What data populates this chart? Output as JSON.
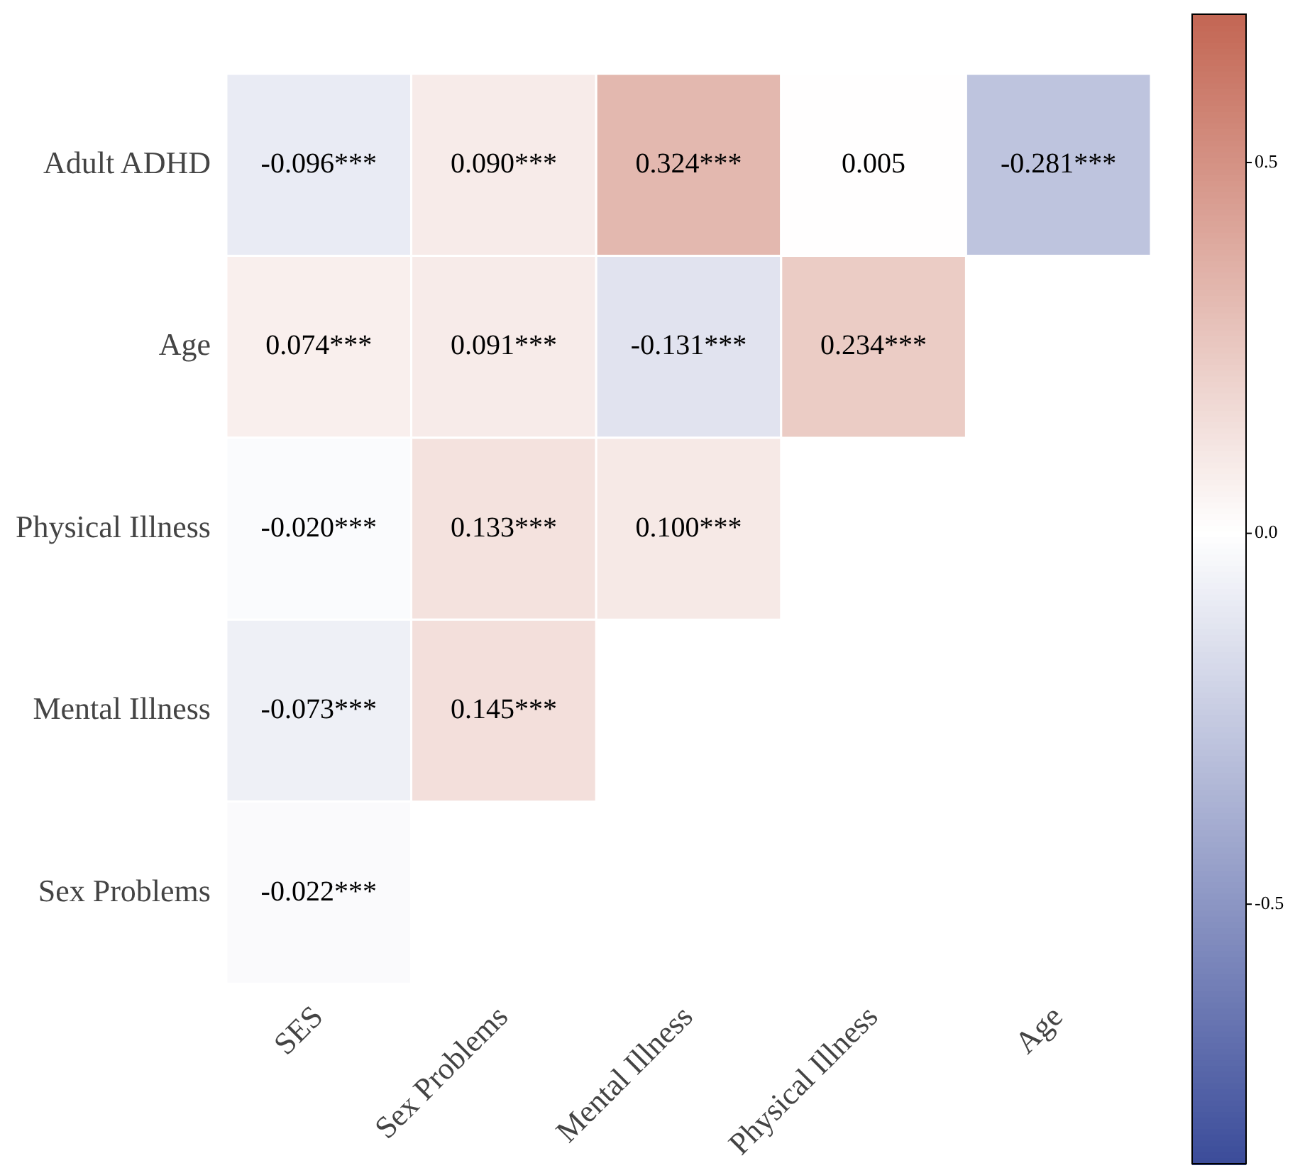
{
  "chart_data": {
    "type": "heatmap",
    "categories": [
      "SES",
      "Sex Problems",
      "Mental Illness",
      "Physical Illness",
      "Age"
    ],
    "y_categories": [
      "Adult ADHD",
      "Age",
      "Physical Illness",
      "Mental Illness",
      "Sex Problems"
    ],
    "cells": [
      [
        -0.096,
        0.09,
        0.324,
        0.005,
        -0.281
      ],
      [
        0.074,
        0.091,
        -0.131,
        0.234,
        null
      ],
      [
        -0.02,
        0.133,
        0.1,
        null,
        null
      ],
      [
        -0.073,
        0.145,
        null,
        null,
        null
      ],
      [
        -0.022,
        null,
        null,
        null,
        null
      ]
    ],
    "cell_labels": [
      [
        "-0.096***",
        "0.090***",
        "0.324***",
        "0.005",
        "-0.281***"
      ],
      [
        "0.074***",
        "0.091***",
        "-0.131***",
        "0.234***",
        null
      ],
      [
        "-0.020***",
        "0.133***",
        "0.100***",
        null,
        null
      ],
      [
        "-0.073***",
        "0.145***",
        null,
        null,
        null
      ],
      [
        "-0.022***",
        null,
        null,
        null,
        null
      ]
    ],
    "clim": [
      -0.85,
      0.7
    ],
    "cticks": [
      {
        "value": -0.5,
        "label": "-0.5"
      },
      {
        "value": 0,
        "label": "0.0"
      },
      {
        "value": 0.5,
        "label": "0.5"
      }
    ]
  }
}
